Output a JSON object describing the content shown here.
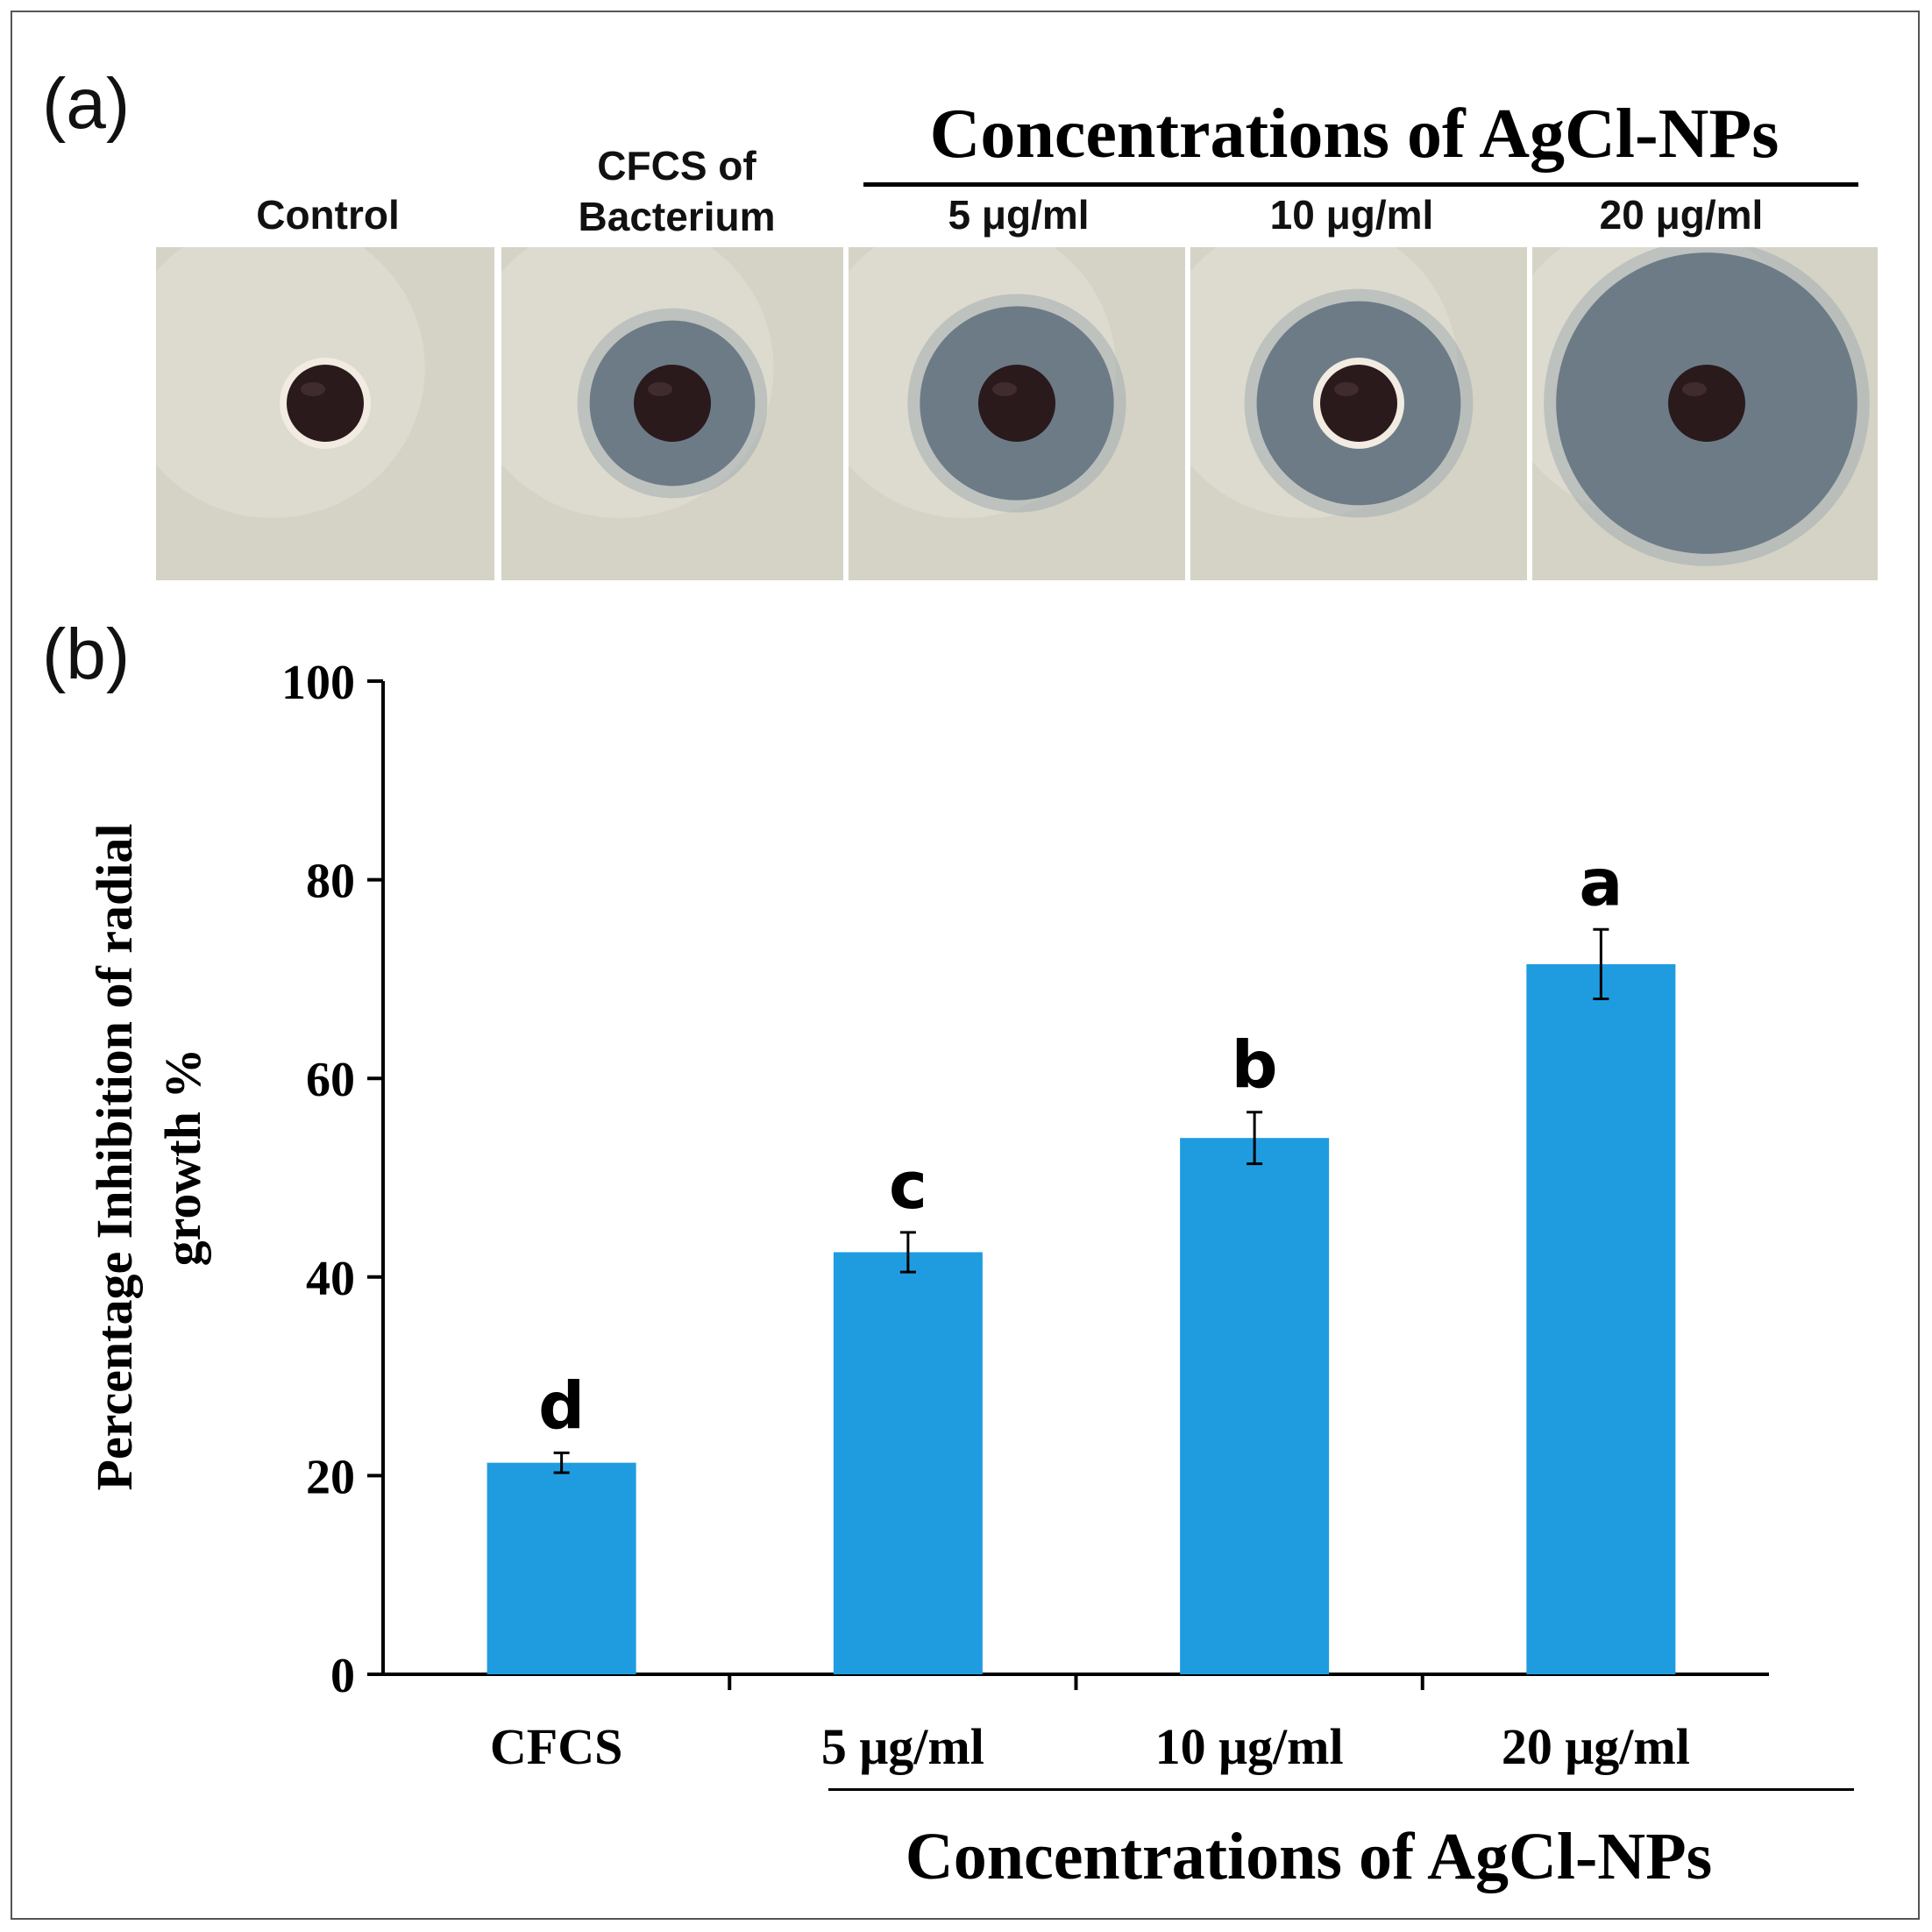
{
  "panel_a": {
    "label": "(a)",
    "group_header": "Concentrations of AgCl-NPs",
    "plates": [
      {
        "label_line1": "Control",
        "label_line2": "",
        "icon": "control-plate-photo",
        "zone_fraction": 0.0
      },
      {
        "label_line1": "CFCS of",
        "label_line2": "Bacterium",
        "icon": "cfcs-plate-photo",
        "zone_fraction": 0.33
      },
      {
        "label_line1": "5 μg/ml",
        "label_line2": "",
        "icon": "agcl-5-plate-photo",
        "zone_fraction": 0.42
      },
      {
        "label_line1": "10 μg/ml",
        "label_line2": "",
        "icon": "agcl-10-plate-photo",
        "zone_fraction": 0.45
      },
      {
        "label_line1": "20 μg/ml",
        "label_line2": "",
        "icon": "agcl-20-plate-photo",
        "zone_fraction": 0.72
      }
    ]
  },
  "panel_b": {
    "label": "(b)"
  },
  "colors": {
    "bar": "#1f9ce0",
    "axis": "#000000",
    "zone": "#6d7b87",
    "agar": "#d4d3c6",
    "well": "#2a1a1c"
  },
  "chart_data": {
    "type": "bar",
    "categories": [
      "CFCS",
      "5 μg/ml",
      "10 μg/ml",
      "20 μg/ml"
    ],
    "values": [
      21.3,
      42.5,
      54.0,
      71.5
    ],
    "errors": [
      1.0,
      2.0,
      2.6,
      3.5
    ],
    "significance_letters": [
      "d",
      "c",
      "b",
      "a"
    ],
    "ylabel_line1": "Percentage Inhibition of radial",
    "ylabel_line2": "growth %",
    "xlabel": "Concentrations of AgCl-NPs",
    "ylim": [
      0,
      100
    ],
    "yticks": [
      0,
      20,
      40,
      60,
      80,
      100
    ],
    "ytick_labels": [
      "0",
      "20",
      "40",
      "60",
      "80",
      "100"
    ]
  }
}
